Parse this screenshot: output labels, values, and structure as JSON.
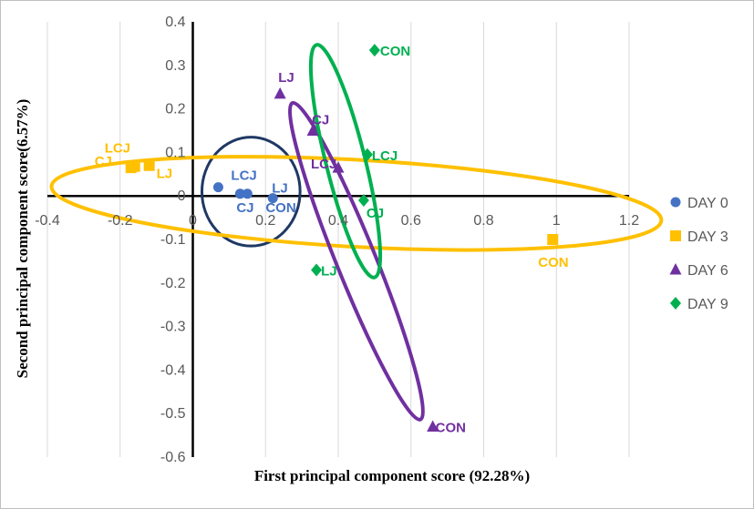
{
  "chart_data": {
    "type": "scatter",
    "xlabel": "First principal component score (92.28%)",
    "ylabel": "Second principal component score(6.57%)",
    "xlim": [
      -0.4,
      1.2
    ],
    "ylim": [
      -0.6,
      0.4
    ],
    "x_ticks": [
      "-0.4",
      "-0.2",
      "0",
      "0.2",
      "0.4",
      "0.6",
      "0.8",
      "1",
      "1.2"
    ],
    "y_ticks": [
      "0.4",
      "0.3",
      "0.2",
      "0.1",
      "0",
      "-0.1",
      "-0.2",
      "-0.3",
      "-0.4",
      "-0.5",
      "-0.6"
    ],
    "grid": "vertical",
    "legend_position": "right",
    "series": [
      {
        "name": "DAY 0",
        "color": "#4472c4",
        "marker": "circle",
        "points": [
          {
            "x": 0.07,
            "y": 0.02,
            "label": "LCJ"
          },
          {
            "x": 0.13,
            "y": 0.005,
            "label": "CJ"
          },
          {
            "x": 0.15,
            "y": 0.005,
            "label": "CON"
          },
          {
            "x": 0.22,
            "y": -0.005,
            "label": "LJ"
          }
        ]
      },
      {
        "name": "DAY 3",
        "color": "#ffc000",
        "marker": "square",
        "points": [
          {
            "x": -0.17,
            "y": 0.065,
            "label": "CJ"
          },
          {
            "x": -0.12,
            "y": 0.07,
            "label": "LJ"
          },
          {
            "x": -0.16,
            "y": 0.068,
            "label": "LCJ"
          },
          {
            "x": 0.99,
            "y": -0.1,
            "label": "CON"
          }
        ]
      },
      {
        "name": "DAY 6",
        "color": "#7030a0",
        "marker": "triangle",
        "points": [
          {
            "x": 0.24,
            "y": 0.235,
            "label": "LJ"
          },
          {
            "x": 0.33,
            "y": 0.15,
            "label": "CJ"
          },
          {
            "x": 0.4,
            "y": 0.065,
            "label": "LCJ"
          },
          {
            "x": 0.66,
            "y": -0.53,
            "label": "CON"
          }
        ]
      },
      {
        "name": "DAY 9",
        "color": "#00b050",
        "marker": "diamond",
        "points": [
          {
            "x": 0.5,
            "y": 0.335,
            "label": "CON"
          },
          {
            "x": 0.48,
            "y": 0.095,
            "label": "LCJ"
          },
          {
            "x": 0.47,
            "y": -0.01,
            "label": "CJ"
          },
          {
            "x": 0.34,
            "y": -0.17,
            "label": "LJ"
          }
        ]
      }
    ],
    "annotations": [
      {
        "type": "circle",
        "color": "#1f3864",
        "cx": 0.16,
        "cy": 0.01,
        "rx": 0.135,
        "ry": 0.125,
        "rotate": 0
      },
      {
        "type": "ellipse",
        "color": "#ffc000",
        "cx": 0.45,
        "cy": -0.017,
        "rx": 0.84,
        "ry": 0.1,
        "rotate": 3.2
      },
      {
        "type": "ellipse",
        "color": "#7030a0",
        "cx": 0.45,
        "cy": -0.15,
        "rx": 0.47,
        "ry": 0.045,
        "rotate": 68
      },
      {
        "type": "ellipse",
        "color": "#00b050",
        "cx": 0.42,
        "cy": 0.08,
        "rx": 0.33,
        "ry": 0.045,
        "rotate": 76
      }
    ]
  }
}
